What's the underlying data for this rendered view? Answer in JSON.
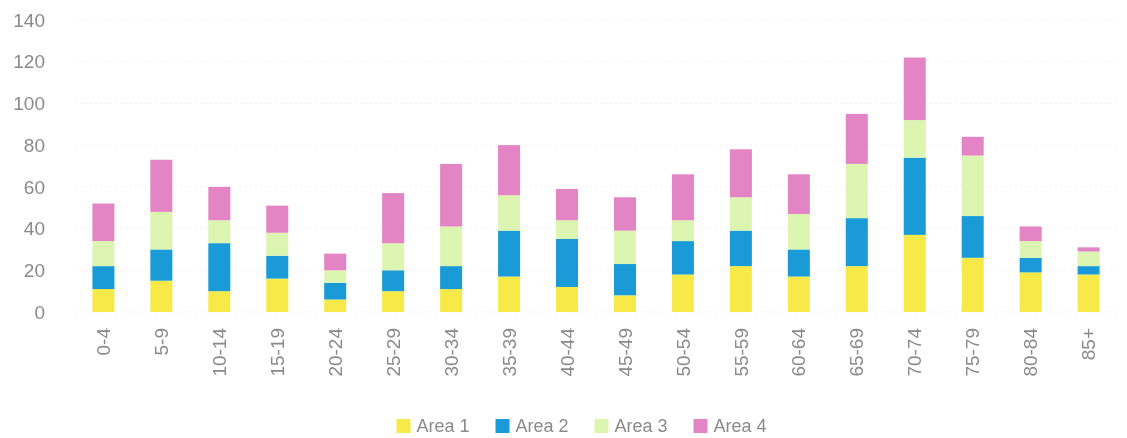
{
  "chart_data": {
    "type": "bar",
    "stacked": true,
    "categories": [
      "0-4",
      "5-9",
      "10-14",
      "15-19",
      "20-24",
      "25-29",
      "30-34",
      "35-39",
      "40-44",
      "45-49",
      "50-54",
      "55-59",
      "60-64",
      "65-69",
      "70-74",
      "75-79",
      "80-84",
      "85+"
    ],
    "series": [
      {
        "name": "Area 1",
        "color": "#f7ea48",
        "values": [
          11,
          15,
          10,
          16,
          6,
          10,
          11,
          17,
          12,
          8,
          18,
          22,
          17,
          22,
          37,
          26,
          19,
          18
        ]
      },
      {
        "name": "Area 2",
        "color": "#1a9bd7",
        "values": [
          11,
          15,
          23,
          11,
          8,
          10,
          11,
          22,
          23,
          15,
          16,
          17,
          13,
          23,
          37,
          20,
          7,
          4
        ]
      },
      {
        "name": "Area 3",
        "color": "#dcf5b0",
        "values": [
          12,
          18,
          11,
          11,
          6,
          13,
          19,
          17,
          9,
          16,
          10,
          16,
          17,
          26,
          18,
          29,
          8,
          7
        ]
      },
      {
        "name": "Area 4",
        "color": "#e385c4",
        "values": [
          18,
          25,
          16,
          13,
          8,
          24,
          30,
          24,
          15,
          16,
          22,
          23,
          19,
          24,
          30,
          9,
          7,
          2
        ]
      }
    ],
    "ylim": [
      0,
      140
    ],
    "yticks": [
      0,
      20,
      40,
      60,
      80,
      100,
      120,
      140
    ],
    "grid": "y",
    "legend": "bottom"
  }
}
